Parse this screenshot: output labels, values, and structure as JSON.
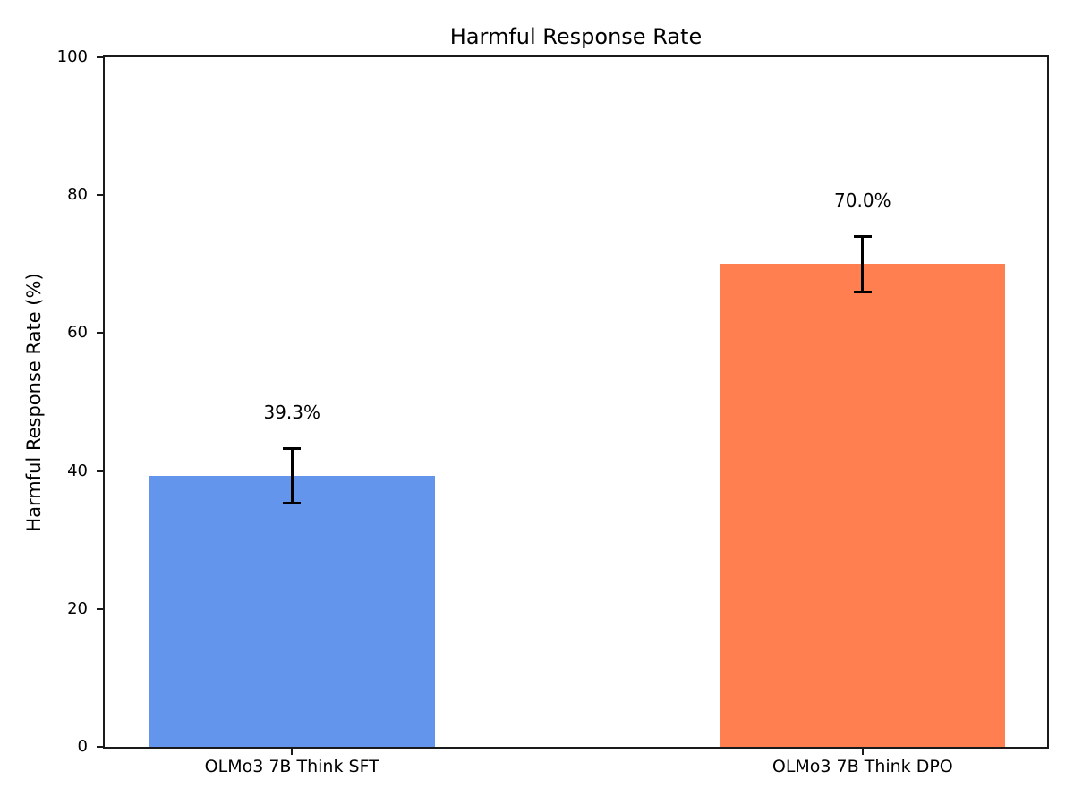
{
  "chart_data": {
    "type": "bar",
    "title": "Harmful Response Rate",
    "xlabel": "",
    "ylabel": "Harmful Response Rate (%)",
    "categories": [
      "OLMo3 7B Think SFT",
      "OLMo3 7B Think DPO"
    ],
    "values": [
      39.3,
      70.0
    ],
    "errors": [
      4.0,
      4.0
    ],
    "value_labels": [
      "39.3%",
      "70.0%"
    ],
    "bar_colors": [
      "#6495ED",
      "#FF7F50"
    ],
    "error_bar_color": "#000000",
    "axis_color": "#1a1a1a",
    "background_color": "#ffffff",
    "ylim": [
      0,
      100
    ],
    "yticks": [
      0,
      20,
      40,
      60,
      80,
      100
    ],
    "grid": false,
    "legend": "none"
  }
}
